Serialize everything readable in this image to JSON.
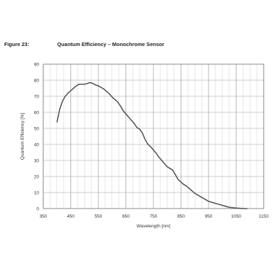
{
  "figure": {
    "number": "Figure 23:",
    "title": "Quantum Efficiency – Monochrome Sensor"
  },
  "chart_data": {
    "type": "line",
    "title": "Quantum Efficiency – Monochrome Sensor",
    "xlabel": "Wavelength [nm]",
    "ylabel": "Quantum Efficiency [%]",
    "xlim": [
      350,
      1150
    ],
    "ylim": [
      0,
      90
    ],
    "xticks": [
      350,
      450,
      550,
      650,
      750,
      850,
      950,
      1050,
      1150
    ],
    "yticks": [
      0,
      10,
      20,
      30,
      40,
      50,
      60,
      70,
      80,
      90
    ],
    "grid": true,
    "minor_x_step": 25,
    "line_color": "#555555",
    "series": [
      {
        "x": [
          400,
          410,
          420,
          430,
          440,
          450,
          460,
          470,
          480,
          490,
          500,
          510,
          520,
          530,
          540,
          550,
          560,
          570,
          580,
          590,
          600,
          610,
          620,
          630,
          640,
          650,
          660,
          670,
          680,
          690,
          700,
          710,
          720,
          730,
          740,
          750,
          760,
          770,
          780,
          790,
          800,
          810,
          820,
          830,
          840,
          850,
          860,
          870,
          880,
          890,
          900,
          910,
          920,
          930,
          940,
          950,
          960,
          970,
          980,
          990,
          1000,
          1010,
          1020,
          1030,
          1040,
          1050,
          1060,
          1070,
          1080,
          1090
        ],
        "y": [
          54,
          62,
          67,
          70,
          72,
          73.5,
          75,
          76.5,
          77.5,
          77.5,
          77.5,
          78,
          78.5,
          78,
          77,
          76.5,
          75.5,
          74.5,
          73,
          71.5,
          69.5,
          68,
          66.5,
          64,
          61,
          59,
          57,
          55,
          53,
          50.5,
          49.5,
          47,
          43,
          40,
          38.5,
          36.5,
          34.5,
          32,
          30,
          28,
          26,
          25,
          24,
          21,
          18,
          16.5,
          15,
          14,
          12.5,
          11,
          9.5,
          8.5,
          7.5,
          6.5,
          5.5,
          4.5,
          4,
          3.5,
          3,
          2.5,
          2,
          1.5,
          1,
          0.7,
          0.5,
          0.3,
          0.2,
          0.1,
          0,
          0
        ]
      }
    ]
  }
}
